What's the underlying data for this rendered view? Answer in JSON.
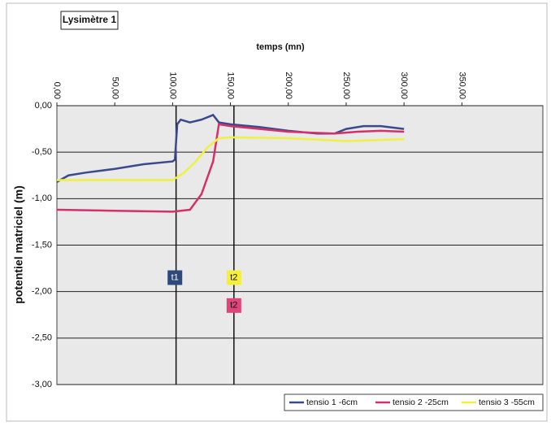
{
  "chart_data": {
    "type": "line",
    "title": "Lysimètre 1",
    "xlabel": "temps (mn)",
    "ylabel": "potentiel matriciel (m)",
    "xlim": [
      0,
      420
    ],
    "ylim": [
      -3,
      0
    ],
    "xticks": [
      {
        "value": 0,
        "label": "0,00"
      },
      {
        "value": 50,
        "label": "50,00"
      },
      {
        "value": 100,
        "label": "100,00"
      },
      {
        "value": 150,
        "label": "150,00"
      },
      {
        "value": 200,
        "label": "200,00"
      },
      {
        "value": 250,
        "label": "250,00"
      },
      {
        "value": 300,
        "label": "300,00"
      },
      {
        "value": 350,
        "label": "350,00"
      }
    ],
    "yticks": [
      {
        "value": 0,
        "label": "0,00"
      },
      {
        "value": -0.5,
        "label": "-0,50"
      },
      {
        "value": -1,
        "label": "-1,00"
      },
      {
        "value": -1.5,
        "label": "-1,50"
      },
      {
        "value": -2,
        "label": "-2,00"
      },
      {
        "value": -2.5,
        "label": "-2,50"
      },
      {
        "value": -3,
        "label": "-3,00"
      }
    ],
    "grid": true,
    "legend": "bottom-right",
    "vlines": [
      103,
      153
    ],
    "annotations": [
      {
        "text": "t1",
        "x": 102,
        "y": -1.85,
        "color": "#2e4a7a"
      },
      {
        "text": "t2",
        "x": 153,
        "y": -1.85,
        "color": "#f4f03a"
      },
      {
        "text": "t2",
        "x": 153,
        "y": -2.15,
        "color": "#e0457a"
      }
    ],
    "series": [
      {
        "name": "tensio 1 -6cm",
        "color": "#3a4a8a",
        "x": [
          0,
          10,
          25,
          50,
          75,
          100,
          102,
          104,
          107,
          115,
          125,
          135,
          140,
          150,
          175,
          200,
          225,
          240,
          250,
          265,
          280,
          300
        ],
        "values": [
          -0.82,
          -0.75,
          -0.72,
          -0.68,
          -0.63,
          -0.6,
          -0.58,
          -0.2,
          -0.15,
          -0.18,
          -0.15,
          -0.1,
          -0.18,
          -0.2,
          -0.23,
          -0.27,
          -0.3,
          -0.3,
          -0.25,
          -0.22,
          -0.22,
          -0.25
        ]
      },
      {
        "name": "tensio 2 -25cm",
        "color": "#d4306a",
        "x": [
          0,
          50,
          100,
          115,
          125,
          135,
          140,
          150,
          200,
          240,
          260,
          280,
          300
        ],
        "values": [
          -1.12,
          -1.13,
          -1.14,
          -1.12,
          -0.95,
          -0.6,
          -0.2,
          -0.22,
          -0.28,
          -0.3,
          -0.28,
          -0.27,
          -0.28
        ]
      },
      {
        "name": "tensio 3 -55cm",
        "color": "#f0f040",
        "x": [
          0,
          50,
          100,
          110,
          120,
          130,
          140,
          150,
          200,
          250,
          300
        ],
        "values": [
          -0.8,
          -0.8,
          -0.8,
          -0.72,
          -0.6,
          -0.45,
          -0.35,
          -0.34,
          -0.35,
          -0.38,
          -0.36
        ]
      }
    ]
  }
}
